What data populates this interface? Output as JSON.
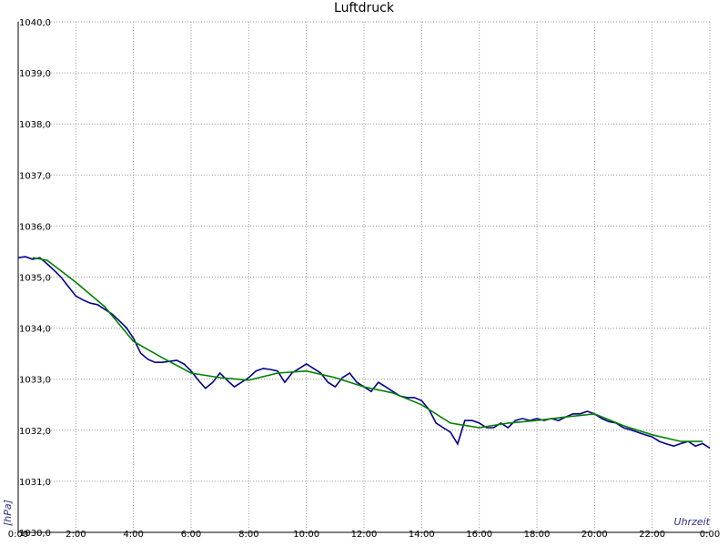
{
  "chart_data": {
    "type": "line",
    "title": "Luftdruck",
    "ylabel": "[hPa]",
    "xlabel": "Uhrzeit",
    "xlim": [
      0,
      24
    ],
    "ylim": [
      1030,
      1040
    ],
    "grid": true,
    "xticks": [
      {
        "value": 0,
        "label": "0:00"
      },
      {
        "value": 2,
        "label": "2:00"
      },
      {
        "value": 4,
        "label": "4:00"
      },
      {
        "value": 6,
        "label": "6:00"
      },
      {
        "value": 8,
        "label": "8:00"
      },
      {
        "value": 10,
        "label": "10:00"
      },
      {
        "value": 12,
        "label": "12:00"
      },
      {
        "value": 14,
        "label": "14:00"
      },
      {
        "value": 16,
        "label": "16:00"
      },
      {
        "value": 18,
        "label": "18:00"
      },
      {
        "value": 20,
        "label": "20:00"
      },
      {
        "value": 22,
        "label": "22:00"
      },
      {
        "value": 24,
        "label": "0:00"
      }
    ],
    "yticks": [
      {
        "value": 1030,
        "label": "1030,0"
      },
      {
        "value": 1031,
        "label": "1031,0"
      },
      {
        "value": 1032,
        "label": "1032,0"
      },
      {
        "value": 1033,
        "label": "1033,0"
      },
      {
        "value": 1034,
        "label": "1034,0"
      },
      {
        "value": 1035,
        "label": "1035,0"
      },
      {
        "value": 1036,
        "label": "1036,0"
      },
      {
        "value": 1037,
        "label": "1037,0"
      },
      {
        "value": 1038,
        "label": "1038,0"
      },
      {
        "value": 1039,
        "label": "1039,0"
      },
      {
        "value": 1040,
        "label": "1040,0"
      }
    ],
    "series": [
      {
        "color": "#00008b",
        "x": [
          0,
          0.25,
          0.5,
          0.75,
          1,
          1.25,
          1.5,
          1.75,
          2,
          2.25,
          2.5,
          2.75,
          3,
          3.25,
          3.5,
          3.75,
          4,
          4.25,
          4.5,
          4.75,
          5,
          5.25,
          5.5,
          5.75,
          6,
          6.25,
          6.5,
          6.75,
          7,
          7.25,
          7.5,
          7.75,
          8,
          8.25,
          8.5,
          8.75,
          9,
          9.25,
          9.5,
          9.75,
          10,
          10.25,
          10.5,
          10.75,
          11,
          11.25,
          11.5,
          11.75,
          12,
          12.25,
          12.5,
          12.75,
          13,
          13.25,
          13.5,
          13.75,
          14,
          14.25,
          14.5,
          14.75,
          15,
          15.25,
          15.5,
          15.75,
          16,
          16.25,
          16.5,
          16.75,
          17,
          17.25,
          17.5,
          17.75,
          18,
          18.25,
          18.5,
          18.75,
          19,
          19.25,
          19.5,
          19.75,
          20,
          20.25,
          20.5,
          20.75,
          21,
          21.25,
          21.5,
          21.75,
          22,
          22.25,
          22.5,
          22.75,
          23,
          23.25,
          23.5,
          23.75,
          24
        ],
        "values": [
          1035.38,
          1035.4,
          1035.35,
          1035.38,
          1035.26,
          1035.13,
          1034.99,
          1034.81,
          1034.63,
          1034.55,
          1034.49,
          1034.46,
          1034.37,
          1034.28,
          1034.15,
          1034.01,
          1033.8,
          1033.51,
          1033.39,
          1033.33,
          1033.33,
          1033.35,
          1033.37,
          1033.3,
          1033.16,
          1032.98,
          1032.82,
          1032.94,
          1033.12,
          1032.98,
          1032.85,
          1032.94,
          1033.03,
          1033.16,
          1033.21,
          1033.19,
          1033.16,
          1032.94,
          1033.12,
          1033.21,
          1033.3,
          1033.21,
          1033.12,
          1032.94,
          1032.85,
          1033.03,
          1033.12,
          1032.94,
          1032.85,
          1032.76,
          1032.94,
          1032.85,
          1032.76,
          1032.67,
          1032.64,
          1032.64,
          1032.58,
          1032.41,
          1032.14,
          1032.05,
          1031.96,
          1031.73,
          1032.19,
          1032.19,
          1032.14,
          1032.05,
          1032.05,
          1032.14,
          1032.05,
          1032.19,
          1032.23,
          1032.19,
          1032.23,
          1032.19,
          1032.23,
          1032.19,
          1032.26,
          1032.32,
          1032.32,
          1032.37,
          1032.32,
          1032.23,
          1032.17,
          1032.14,
          1032.05,
          1032.01,
          1031.96,
          1031.91,
          1031.87,
          1031.78,
          1031.73,
          1031.69,
          1031.74,
          1031.78,
          1031.69,
          1031.74,
          1031.65
        ]
      },
      {
        "color": "#008000",
        "x": [
          0.5,
          1,
          2,
          3,
          4,
          5,
          6,
          7,
          8,
          9,
          10,
          11,
          12,
          13,
          14,
          15,
          16,
          17,
          18,
          19,
          20,
          21,
          22,
          23,
          23.75
        ],
        "values": [
          1035.38,
          1035.33,
          1034.9,
          1034.42,
          1033.74,
          1033.42,
          1033.12,
          1033.03,
          1032.98,
          1033.12,
          1033.16,
          1033.03,
          1032.85,
          1032.73,
          1032.5,
          1032.14,
          1032.05,
          1032.14,
          1032.19,
          1032.26,
          1032.32,
          1032.09,
          1031.91,
          1031.78,
          1031.78
        ]
      }
    ]
  }
}
